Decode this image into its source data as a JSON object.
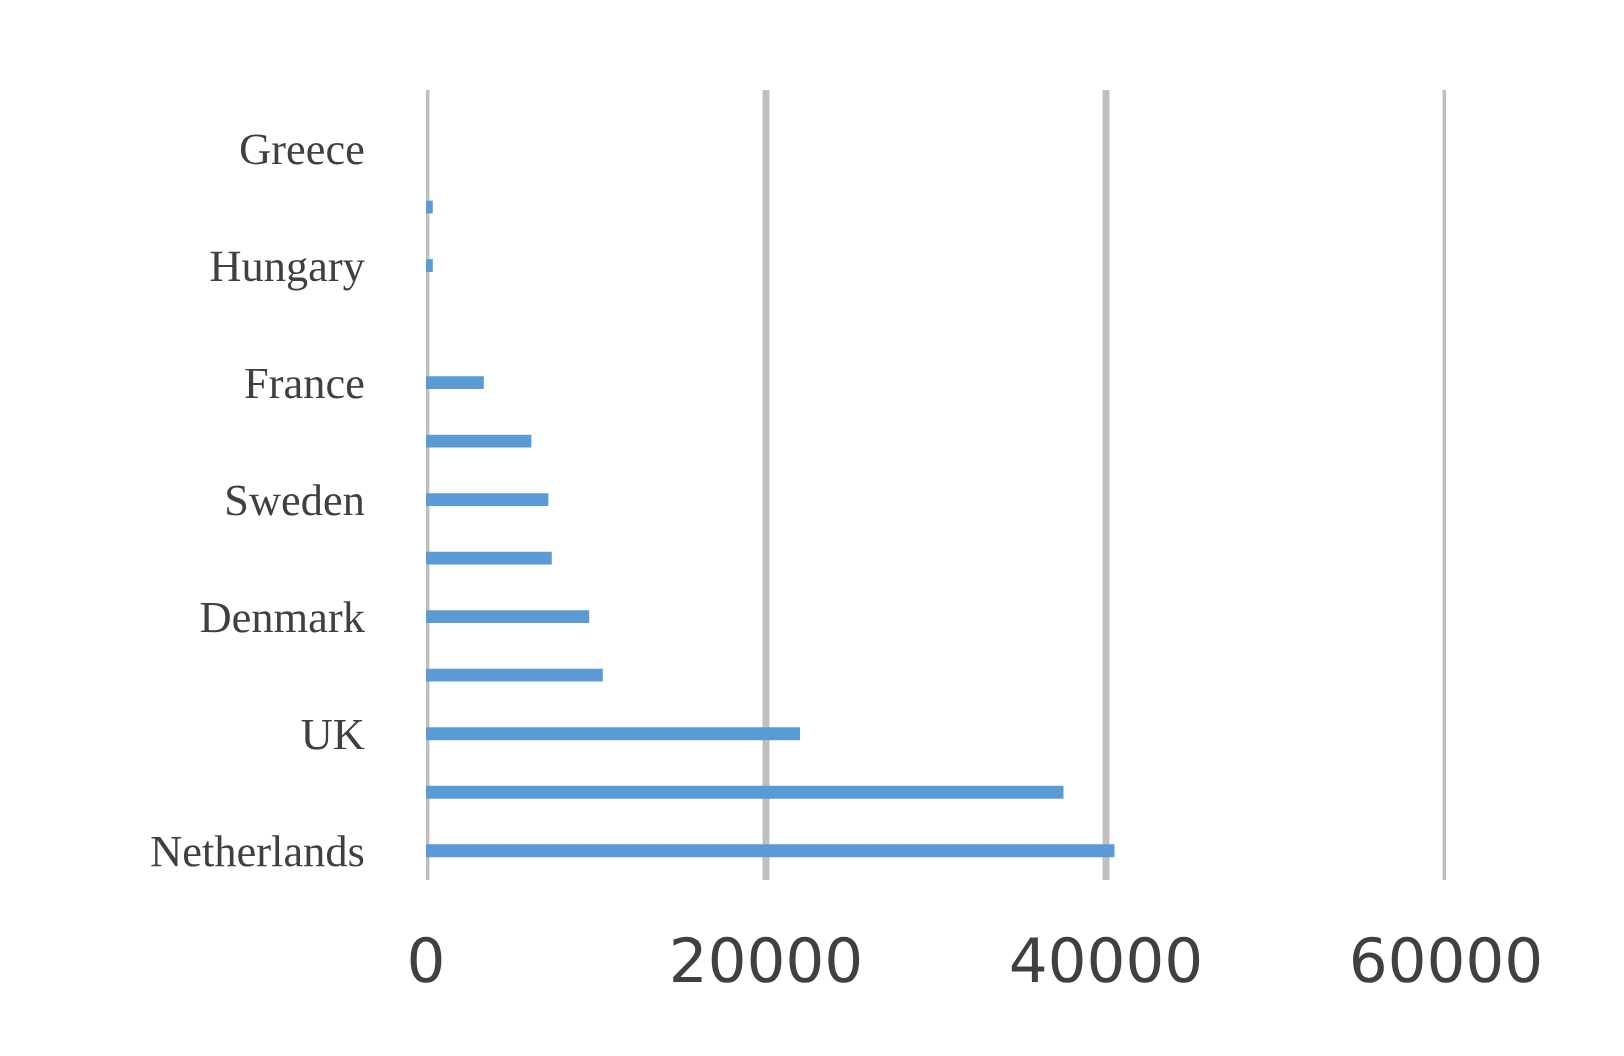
{
  "chart_data": {
    "type": "bar",
    "orientation": "horizontal",
    "categories": [
      "Greece",
      null,
      "Hungary",
      null,
      "France",
      null,
      "Sweden",
      null,
      "Denmark",
      null,
      "UK",
      null,
      "Netherlands"
    ],
    "values": [
      0,
      400,
      400,
      0,
      3400,
      6200,
      7200,
      7400,
      9600,
      10400,
      22000,
      37500,
      40500
    ],
    "color": "#5b9bd5",
    "xlim": [
      0,
      60000
    ],
    "xticks": [
      0,
      20000,
      40000,
      60000
    ],
    "grid": "x"
  }
}
